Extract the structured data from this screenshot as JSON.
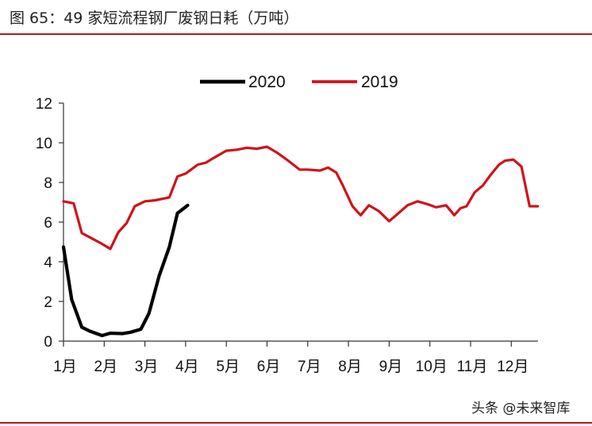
{
  "figure": {
    "title": "图 65：49 家短流程钢厂废钢日耗（万吨）",
    "watermark": "头条 @未来智库"
  },
  "colors": {
    "rule": "#c0141c",
    "s2020": "#000000",
    "s2019": "#d0121b"
  },
  "chart_data": {
    "type": "line",
    "title": "49 家短流程钢厂废钢日耗（万吨）",
    "xlabel": "",
    "ylabel": "",
    "ylim": [
      0,
      12
    ],
    "yticks": [
      0,
      2,
      4,
      6,
      8,
      10,
      12
    ],
    "categories": [
      "1月",
      "2月",
      "3月",
      "4月",
      "5月",
      "6月",
      "7月",
      "8月",
      "9月",
      "10月",
      "11月",
      "12月"
    ],
    "grid": false,
    "legend": "top-center",
    "series": [
      {
        "name": "2020",
        "x": [
          1.0,
          1.2,
          1.45,
          1.65,
          1.95,
          2.15,
          2.45,
          2.65,
          2.9,
          3.1,
          3.35,
          3.6,
          3.8,
          4.05
        ],
        "values": [
          4.75,
          2.1,
          0.7,
          0.5,
          0.28,
          0.4,
          0.38,
          0.45,
          0.6,
          1.4,
          3.3,
          4.75,
          6.45,
          6.85
        ]
      },
      {
        "name": "2019",
        "x": [
          1.0,
          1.25,
          1.45,
          1.95,
          2.15,
          2.35,
          2.55,
          2.75,
          3.0,
          3.25,
          3.6,
          3.8,
          4.0,
          4.3,
          4.5,
          4.7,
          5.0,
          5.25,
          5.5,
          5.75,
          6.0,
          6.25,
          6.55,
          6.8,
          7.0,
          7.3,
          7.5,
          7.7,
          7.85,
          8.1,
          8.3,
          8.5,
          8.75,
          9.0,
          9.2,
          9.45,
          9.7,
          9.95,
          10.15,
          10.4,
          10.6,
          10.75,
          10.9,
          11.1,
          11.3,
          11.5,
          11.7,
          11.85,
          12.05,
          12.25,
          12.45,
          12.65
        ],
        "values": [
          7.05,
          6.95,
          5.45,
          4.9,
          4.65,
          5.5,
          5.95,
          6.8,
          7.05,
          7.1,
          7.25,
          8.3,
          8.45,
          8.9,
          9.0,
          9.25,
          9.6,
          9.65,
          9.75,
          9.7,
          9.8,
          9.5,
          9.05,
          8.65,
          8.65,
          8.6,
          8.75,
          8.5,
          7.9,
          6.8,
          6.35,
          6.85,
          6.55,
          6.05,
          6.4,
          6.85,
          7.05,
          6.9,
          6.75,
          6.85,
          6.35,
          6.7,
          6.8,
          7.5,
          7.85,
          8.4,
          8.9,
          9.1,
          9.15,
          8.8,
          6.8,
          6.8
        ]
      }
    ]
  }
}
